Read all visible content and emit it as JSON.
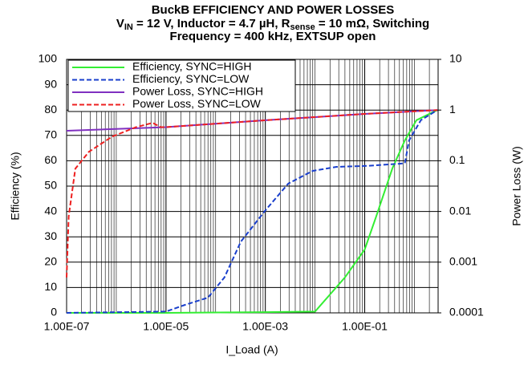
{
  "chart_data": {
    "type": "line",
    "title": [
      "BuckB EFFICIENCY AND POWER LOSSES",
      [
        "V",
        "IN",
        " = 12 V, Inductor = 4.7 µH, R",
        "sense",
        " = 10 mΩ, Switching"
      ],
      "Frequency = 400 kHz, EXTSUP open"
    ],
    "x_label": "I_Load (A)",
    "y_label": "Efficiency (%)",
    "y2_label": "Power Loss (W)",
    "x_log": true,
    "y2_log": true,
    "grid": true,
    "legend": "upper left",
    "xlim": [
      1e-07,
      3
    ],
    "xticks": [
      {
        "value": 1e-07,
        "label": "1.00E-07"
      },
      {
        "value": 1e-05,
        "label": "1.00E-05"
      },
      {
        "value": 0.001,
        "label": "1.00E-03"
      },
      {
        "value": 0.1,
        "label": "1.00E-01"
      }
    ],
    "ylim": [
      0,
      100
    ],
    "yticks": [
      0,
      10,
      20,
      30,
      40,
      50,
      60,
      70,
      80,
      90,
      100
    ],
    "y2lim": [
      0.0001,
      10
    ],
    "y2ticks": [
      0.0001,
      0.001,
      0.01,
      0.1,
      1,
      10
    ],
    "series": [
      {
        "name": "Efficiency, SYNC=HIGH",
        "color": "#33ee33",
        "dashed": false,
        "x": [
          1e-07,
          1e-05,
          0.001,
          0.01,
          0.04,
          0.1,
          0.17,
          0.36,
          0.64,
          1.1,
          2.9
        ],
        "values": [
          0,
          0,
          0.3,
          0.5,
          14,
          25,
          38,
          57,
          68,
          76,
          80
        ]
      },
      {
        "name": "Efficiency, SYNC=LOW",
        "color": "#1a3fcc",
        "dashed": true,
        "x": [
          1e-07,
          1e-05,
          2.3e-05,
          7e-05,
          0.00015,
          0.00032,
          0.00096,
          0.0029,
          0.009,
          0.027,
          0.12,
          0.64,
          0.78,
          1.35,
          2.9
        ],
        "values": [
          0,
          0.5,
          3,
          6,
          14,
          28,
          40,
          51,
          56,
          57.6,
          58,
          59,
          68,
          76,
          80
        ]
      },
      {
        "name": "Power Loss, SYNC=HIGH",
        "color": "#8030c0",
        "dashed": false,
        "axis": "y2",
        "x": [
          1e-07,
          1e-05,
          0.001,
          0.1,
          2.9
        ],
        "values": [
          0.39,
          0.46,
          0.63,
          0.84,
          1
        ]
      },
      {
        "name": "Power Loss, SYNC=LOW",
        "color": "#ee2020",
        "dashed": true,
        "axis": "y2",
        "x": [
          1e-07,
          1.1e-07,
          1.5e-07,
          2.8e-07,
          8.3e-07,
          2.5e-06,
          5.4e-06,
          7.8e-06,
          1e-05,
          0.001,
          0.1,
          2.9
        ],
        "values": [
          0.0005,
          0.008,
          0.07,
          0.15,
          0.3,
          0.46,
          0.56,
          0.46,
          0.46,
          0.63,
          0.84,
          1
        ]
      }
    ]
  }
}
